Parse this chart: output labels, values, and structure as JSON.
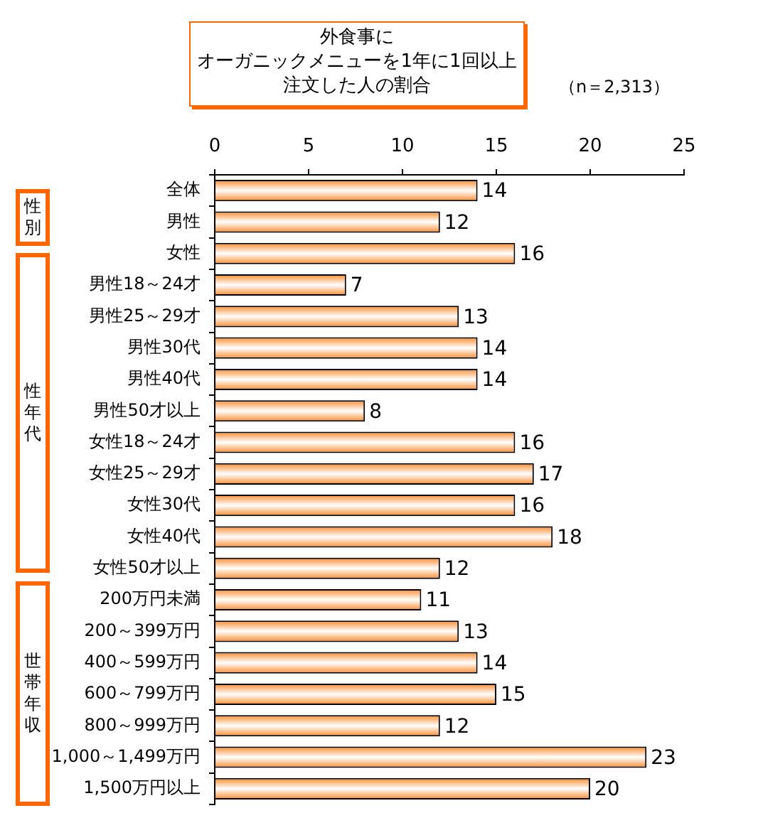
{
  "chart_data": {
    "type": "bar",
    "orientation": "horizontal",
    "title": "外食事にオーガニックメニューを1年に1回以上注文した人の割合",
    "subtitle": "（n＝2,313）",
    "categories": [
      "全体",
      "男性",
      "女性",
      "男性18～24才",
      "男性25～29才",
      "男性30代",
      "男性40代",
      "男性50才以上",
      "女性18～24才",
      "女性25～29才",
      "女性30代",
      "女性40代",
      "女性50才以上",
      "200万円未満",
      "200～399万円",
      "400～599万円",
      "600～799万円",
      "800～999万円",
      "1,000～1,499万円",
      "1,500万円以上"
    ],
    "values": [
      14,
      12,
      16,
      7,
      13,
      14,
      14,
      8,
      16,
      17,
      16,
      18,
      12,
      11,
      13,
      14,
      15,
      12,
      23,
      20
    ],
    "color": "#f98a2c",
    "xlim": [
      0,
      25
    ],
    "xticks": [
      0,
      5,
      10,
      15,
      20,
      25
    ],
    "data_labels": true,
    "legend": false,
    "annotations": [
      "性別",
      "性年代",
      "世帯年収"
    ]
  }
}
